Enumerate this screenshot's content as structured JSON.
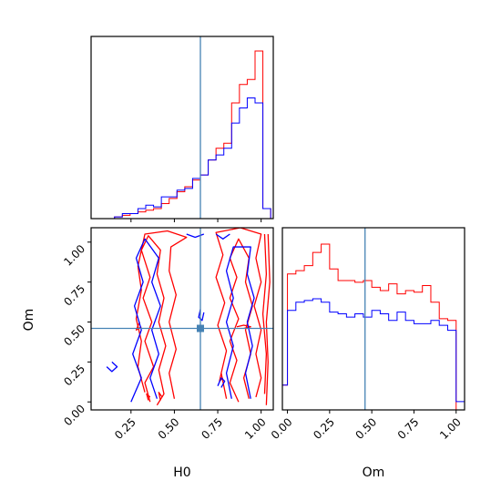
{
  "chart_data": {
    "type": "corner",
    "parameters": [
      "H0",
      "Om"
    ],
    "truth": {
      "H0": 0.65,
      "Om": 0.46
    },
    "truth_color": "#4682b4",
    "series": [
      {
        "color": "#ff0000"
      },
      {
        "color": "#0000ff"
      }
    ],
    "panels": {
      "h0_hist": {
        "type": "step-histogram",
        "xlim": [
          0.02,
          1.07
        ],
        "x_ticks": [
          0.25,
          0.5,
          0.75,
          1.0
        ],
        "bin_edges": [
          0.02,
          0.065,
          0.11,
          0.155,
          0.2,
          0.245,
          0.29,
          0.335,
          0.38,
          0.425,
          0.47,
          0.515,
          0.56,
          0.605,
          0.65,
          0.695,
          0.74,
          0.785,
          0.83,
          0.875,
          0.92,
          0.965,
          1.01,
          1.055
        ],
        "series_values": [
          [
            0,
            0,
            0,
            0.01,
            0.02,
            0.03,
            0.04,
            0.05,
            0.06,
            0.09,
            0.12,
            0.16,
            0.19,
            0.23,
            0.26,
            0.35,
            0.42,
            0.45,
            0.69,
            0.8,
            0.83,
            1.0,
            0.06
          ],
          [
            0,
            0,
            0,
            0.01,
            0.03,
            0.03,
            0.06,
            0.08,
            0.07,
            0.13,
            0.13,
            0.17,
            0.18,
            0.24,
            0.26,
            0.35,
            0.38,
            0.42,
            0.57,
            0.66,
            0.72,
            0.69,
            0.06
          ]
        ]
      },
      "om_hist": {
        "type": "step-histogram",
        "xlim": [
          -0.03,
          1.05
        ],
        "x_ticks": [
          "0.00",
          "0.25",
          "0.50",
          "0.75",
          "1.00"
        ],
        "x_label": "Om",
        "bin_edges": [
          -0.03,
          0.0,
          0.05,
          0.1,
          0.15,
          0.2,
          0.25,
          0.3,
          0.35,
          0.4,
          0.45,
          0.5,
          0.55,
          0.6,
          0.65,
          0.7,
          0.75,
          0.8,
          0.85,
          0.9,
          0.95,
          1.0,
          1.05
        ],
        "series_values": [
          [
            0.15,
            0.82,
            0.84,
            0.87,
            0.95,
            1.0,
            0.85,
            0.78,
            0.78,
            0.77,
            0.78,
            0.74,
            0.72,
            0.76,
            0.7,
            0.72,
            0.71,
            0.75,
            0.65,
            0.55,
            0.54,
            0.0
          ],
          [
            0.15,
            0.6,
            0.65,
            0.66,
            0.67,
            0.65,
            0.59,
            0.58,
            0.56,
            0.58,
            0.56,
            0.6,
            0.58,
            0.54,
            0.59,
            0.54,
            0.52,
            0.52,
            0.54,
            0.51,
            0.48,
            0.05
          ]
        ]
      },
      "joint": {
        "type": "contour",
        "xlim": [
          0.02,
          1.07
        ],
        "ylim": [
          -0.05,
          1.09
        ],
        "x_ticks": [
          "0.25",
          "0.50",
          "0.75",
          "1.00"
        ],
        "y_ticks": [
          "0.00",
          "0.25",
          "0.50",
          "0.75",
          "1.00"
        ],
        "x_label": "H0",
        "y_label": "Om",
        "contours": [
          {
            "series": 0,
            "points": [
              [
                0.36,
                0.0
              ],
              [
                0.33,
                0.12
              ],
              [
                0.38,
                0.22
              ],
              [
                0.33,
                0.38
              ],
              [
                0.37,
                0.5
              ],
              [
                0.32,
                0.65
              ],
              [
                0.36,
                0.78
              ],
              [
                0.31,
                0.95
              ],
              [
                0.35,
                1.04
              ],
              [
                0.42,
                0.95
              ],
              [
                0.4,
                0.8
              ],
              [
                0.44,
                0.65
              ],
              [
                0.41,
                0.5
              ],
              [
                0.45,
                0.35
              ],
              [
                0.41,
                0.2
              ],
              [
                0.44,
                0.05
              ],
              [
                0.4,
                -0.02
              ]
            ]
          },
          {
            "series": 0,
            "points": [
              [
                0.33,
                0.06
              ],
              [
                0.29,
                0.22
              ],
              [
                0.31,
                0.38
              ],
              [
                0.28,
                0.52
              ],
              [
                0.31,
                0.7
              ],
              [
                0.29,
                0.85
              ],
              [
                0.33,
                1.05
              ],
              [
                0.46,
                1.07
              ],
              [
                0.57,
                1.03
              ],
              [
                0.48,
                0.97
              ],
              [
                0.47,
                0.82
              ],
              [
                0.51,
                0.67
              ],
              [
                0.47,
                0.5
              ],
              [
                0.51,
                0.33
              ],
              [
                0.47,
                0.18
              ],
              [
                0.5,
                0.02
              ]
            ]
          },
          {
            "series": 0,
            "points": [
              [
                0.87,
                0.0
              ],
              [
                0.82,
                0.12
              ],
              [
                0.86,
                0.26
              ],
              [
                0.82,
                0.38
              ],
              [
                0.87,
                0.52
              ],
              [
                0.82,
                0.65
              ],
              [
                0.86,
                0.78
              ],
              [
                0.82,
                0.9
              ],
              [
                0.87,
                1.02
              ],
              [
                0.93,
                0.9
              ],
              [
                0.91,
                0.75
              ],
              [
                0.95,
                0.6
              ],
              [
                0.91,
                0.45
              ],
              [
                0.94,
                0.3
              ],
              [
                0.9,
                0.15
              ],
              [
                0.93,
                0.02
              ]
            ]
          },
          {
            "series": 0,
            "points": [
              [
                0.8,
                0.02
              ],
              [
                0.77,
                0.18
              ],
              [
                0.8,
                0.32
              ],
              [
                0.75,
                0.48
              ],
              [
                0.79,
                0.62
              ],
              [
                0.74,
                0.78
              ],
              [
                0.78,
                0.92
              ],
              [
                0.74,
                1.06
              ],
              [
                0.88,
                1.09
              ],
              [
                1.0,
                1.05
              ],
              [
                0.97,
                0.9
              ],
              [
                1.0,
                0.75
              ],
              [
                0.96,
                0.6
              ],
              [
                1.0,
                0.45
              ],
              [
                0.97,
                0.3
              ],
              [
                1.0,
                0.15
              ],
              [
                0.97,
                0.03
              ]
            ]
          },
          {
            "series": 0,
            "points": [
              [
                1.03,
                -0.02
              ],
              [
                1.04,
                0.25
              ],
              [
                1.03,
                0.5
              ],
              [
                1.05,
                0.75
              ],
              [
                1.04,
                1.05
              ]
            ]
          },
          {
            "series": 0,
            "points": [
              [
                1.02,
                0.05
              ],
              [
                1.03,
                0.3
              ],
              [
                1.01,
                0.55
              ],
              [
                1.03,
                0.8
              ],
              [
                1.02,
                1.05
              ]
            ]
          },
          {
            "series": 0,
            "points": [
              [
                0.35,
                0.01
              ],
              [
                0.34,
                0.05
              ],
              [
                0.36,
                0.03
              ]
            ]
          },
          {
            "series": 0,
            "points": [
              [
                0.42,
                0.01
              ],
              [
                0.41,
                0.06
              ],
              [
                0.43,
                0.03
              ]
            ]
          },
          {
            "series": 0,
            "points": [
              [
                0.86,
                0.47
              ],
              [
                0.9,
                0.48
              ],
              [
                0.94,
                0.47
              ],
              [
                0.9,
                0.46
              ]
            ]
          },
          {
            "series": 0,
            "points": [
              [
                0.77,
                0.18
              ],
              [
                0.76,
                0.13
              ],
              [
                0.78,
                0.15
              ]
            ]
          },
          {
            "series": 0,
            "points": [
              [
                0.3,
                0.5
              ],
              [
                0.28,
                0.45
              ],
              [
                0.31,
                0.47
              ]
            ]
          },
          {
            "series": 1,
            "points": [
              [
                0.25,
                0.0
              ],
              [
                0.31,
                0.15
              ],
              [
                0.26,
                0.3
              ],
              [
                0.31,
                0.45
              ],
              [
                0.27,
                0.6
              ],
              [
                0.32,
                0.75
              ],
              [
                0.28,
                0.9
              ],
              [
                0.33,
                1.02
              ],
              [
                0.41,
                0.9
              ],
              [
                0.37,
                0.75
              ],
              [
                0.42,
                0.6
              ],
              [
                0.37,
                0.45
              ],
              [
                0.41,
                0.3
              ],
              [
                0.36,
                0.15
              ],
              [
                0.4,
                0.02
              ]
            ]
          },
          {
            "series": 1,
            "points": [
              [
                0.83,
                0.02
              ],
              [
                0.8,
                0.18
              ],
              [
                0.84,
                0.35
              ],
              [
                0.8,
                0.5
              ],
              [
                0.84,
                0.65
              ],
              [
                0.8,
                0.82
              ],
              [
                0.84,
                0.97
              ],
              [
                0.94,
                0.97
              ],
              [
                0.92,
                0.8
              ],
              [
                0.96,
                0.65
              ],
              [
                0.92,
                0.5
              ],
              [
                0.95,
                0.35
              ],
              [
                0.91,
                0.18
              ],
              [
                0.94,
                0.02
              ]
            ]
          },
          {
            "series": 1,
            "points": [
              [
                0.75,
                0.1
              ],
              [
                0.77,
                0.15
              ],
              [
                0.79,
                0.13
              ],
              [
                0.77,
                0.09
              ]
            ]
          },
          {
            "series": 1,
            "points": [
              [
                0.14,
                0.25
              ],
              [
                0.17,
                0.22
              ],
              [
                0.14,
                0.19
              ],
              [
                0.11,
                0.22
              ]
            ]
          },
          {
            "series": 1,
            "points": [
              [
                0.65,
                0.58
              ],
              [
                0.64,
                0.53
              ],
              [
                0.66,
                0.51
              ],
              [
                0.67,
                0.56
              ]
            ]
          },
          {
            "series": 1,
            "points": [
              [
                0.57,
                1.05
              ],
              [
                0.62,
                1.03
              ],
              [
                0.67,
                1.05
              ]
            ]
          },
          {
            "series": 1,
            "points": [
              [
                0.74,
                1.05
              ],
              [
                0.78,
                1.02
              ],
              [
                0.82,
                1.05
              ]
            ]
          }
        ]
      }
    }
  }
}
